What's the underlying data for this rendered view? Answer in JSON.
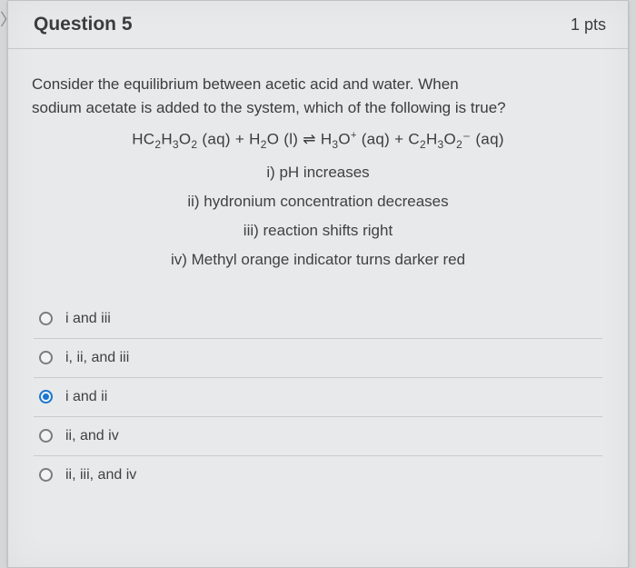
{
  "header": {
    "title": "Question 5",
    "points": "1 pts"
  },
  "prompt": {
    "line1": "Consider the equilibrium between acetic acid and water.  When",
    "line2": "sodium acetate is added to the system, which of the following is true?"
  },
  "equation_parts": {
    "p1": "HC",
    "p2": "2",
    "p3": "H",
    "p4": "3",
    "p5": "O",
    "p6": "2",
    "p7": " (aq) + H",
    "p8": "2",
    "p9": "O (l) ⇌ H",
    "p10": "3",
    "p11": "O",
    "p12": "+",
    "p13": " (aq) + C",
    "p14": "2",
    "p15": "H",
    "p16": "3",
    "p17": "O",
    "p18": "2",
    "p19": "⁻",
    "p20": " (aq)"
  },
  "statements": {
    "s1": "i) pH increases",
    "s2": "ii) hydronium concentration decreases",
    "s3": "iii) reaction shifts right",
    "s4": "iv) Methyl orange indicator turns darker red"
  },
  "options": [
    {
      "label": "i and iii",
      "selected": false
    },
    {
      "label": "i, ii, and iii",
      "selected": false
    },
    {
      "label": "i and ii",
      "selected": true
    },
    {
      "label": "ii, and iv",
      "selected": false
    },
    {
      "label": "ii, iii, and iv",
      "selected": false
    }
  ],
  "colors": {
    "card_bg": "#e8e9ea",
    "text": "#3a3c3e",
    "border": "#c5c7c9",
    "radio_selected": "#1976d2"
  }
}
